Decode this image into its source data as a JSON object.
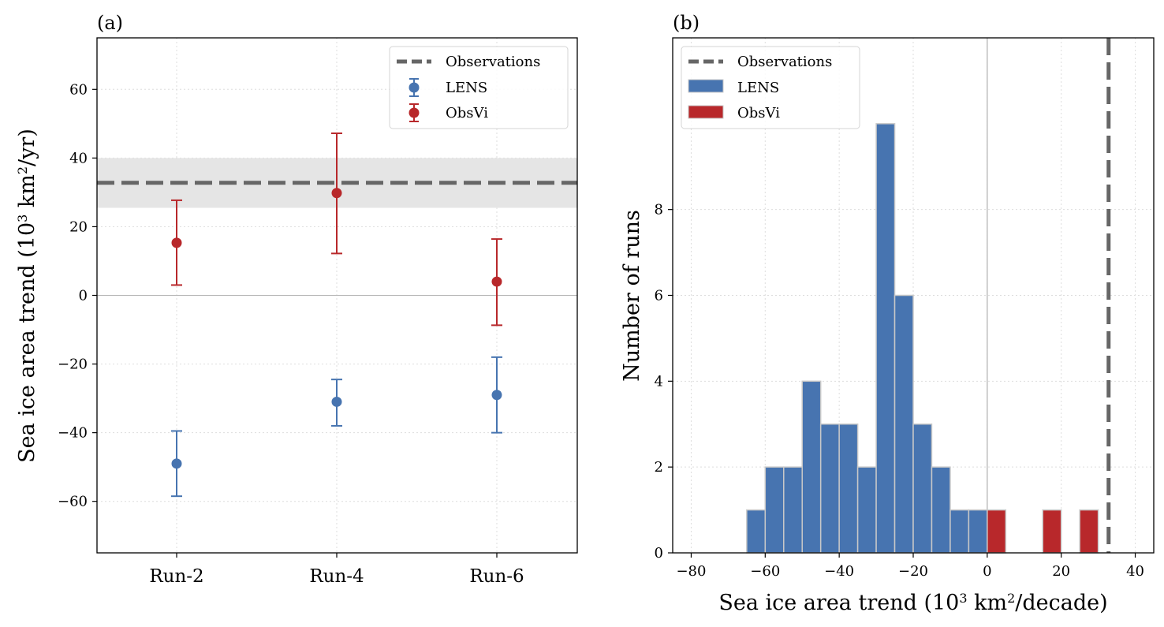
{
  "colors": {
    "lens": "#4774b0",
    "obsvi": "#b8282b",
    "observations": "#666666",
    "obs_band": "#e5e5e5",
    "grid": "#dddddd",
    "hist_edge": "#c8c8c8",
    "zero_line": "#b5b5b5"
  },
  "chart_data": [
    {
      "type": "scatter",
      "panel_label": "(a)",
      "ylabel_main": "Sea ice area trend (10",
      "ylabel_sup1": "3",
      "ylabel_mid": " km",
      "ylabel_sup2": "2",
      "ylabel_end": "/yr)",
      "categories": [
        "Run-2",
        "Run-4",
        "Run-6"
      ],
      "ylim": [
        -75,
        75
      ],
      "yticks": [
        -60,
        -40,
        -20,
        0,
        20,
        40,
        60
      ],
      "ytick_labels": [
        "−60",
        "−40",
        "−20",
        "0",
        "20",
        "40",
        "60"
      ],
      "grid": true,
      "legend_position": "top-right",
      "observations": {
        "name": "Observations",
        "value": 32.8,
        "band": [
          25.5,
          40
        ]
      },
      "series": [
        {
          "name": "LENS",
          "values": [
            -49,
            -31,
            -29
          ],
          "err_low": [
            -58.5,
            -38,
            -40
          ],
          "err_high": [
            -39.5,
            -24.5,
            -18
          ]
        },
        {
          "name": "ObsVi",
          "values": [
            15.3,
            29.8,
            4
          ],
          "err_low": [
            3,
            12.2,
            -8.7
          ],
          "err_high": [
            27.7,
            47.2,
            16.4
          ]
        }
      ]
    },
    {
      "type": "bar",
      "subtype": "histogram",
      "panel_label": "(b)",
      "ylabel": "Number of runs",
      "xlabel_main": "Sea ice area trend (10",
      "xlabel_sup1": "3",
      "xlabel_mid": " km",
      "xlabel_sup2": "2",
      "xlabel_end": "/decade)",
      "xlim": [
        -85,
        45
      ],
      "ylim": [
        0,
        12
      ],
      "xticks": [
        -80,
        -60,
        -40,
        -20,
        0,
        20,
        40
      ],
      "xtick_labels": [
        "−80",
        "−60",
        "−40",
        "−20",
        "0",
        "20",
        "40"
      ],
      "yticks": [
        0,
        2,
        4,
        6,
        8
      ],
      "ytick_labels": [
        "0",
        "2",
        "4",
        "6",
        "8"
      ],
      "bin_width": 5,
      "grid": true,
      "legend_position": "top-left",
      "observations": {
        "name": "Observations",
        "value": 32.8
      },
      "series": [
        {
          "name": "LENS",
          "bin_starts": [
            -65,
            -60,
            -55,
            -50,
            -45,
            -40,
            -35,
            -30,
            -25,
            -20,
            -15,
            -10,
            -5
          ],
          "counts": [
            1,
            2,
            2,
            4,
            3,
            3,
            2,
            10,
            6,
            3,
            2,
            1,
            1
          ]
        },
        {
          "name": "ObsVi",
          "bin_starts": [
            0,
            15,
            25
          ],
          "counts": [
            1,
            1,
            1
          ]
        }
      ]
    }
  ]
}
